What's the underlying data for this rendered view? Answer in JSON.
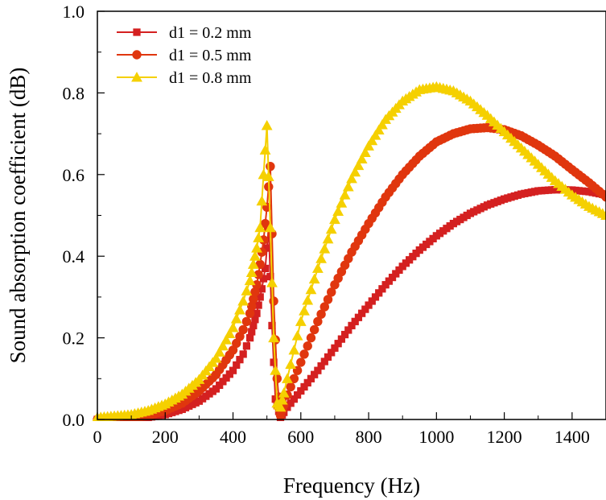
{
  "chart_data": {
    "type": "line",
    "title": "",
    "xlabel": "Frequency (Hz)",
    "ylabel": "Sound absorption coefficient (dB)",
    "xlim": [
      0,
      1500
    ],
    "ylim": [
      0.0,
      1.0
    ],
    "x_ticks": [
      "0",
      "200",
      "400",
      "600",
      "800",
      "1000",
      "1200",
      "1400"
    ],
    "y_ticks": [
      "0.0",
      "0.2",
      "0.4",
      "0.6",
      "0.8",
      "1.0"
    ],
    "legend_position": "top-left",
    "grid": false,
    "series": [
      {
        "name": "d1 = 0.2 mm",
        "color": "#d42020",
        "marker": "square",
        "points": [
          [
            0,
            0.0
          ],
          [
            100,
            0.0
          ],
          [
            150,
            0.005
          ],
          [
            200,
            0.012
          ],
          [
            250,
            0.025
          ],
          [
            300,
            0.045
          ],
          [
            350,
            0.075
          ],
          [
            400,
            0.12
          ],
          [
            430,
            0.16
          ],
          [
            450,
            0.2
          ],
          [
            470,
            0.26
          ],
          [
            485,
            0.32
          ],
          [
            495,
            0.37
          ],
          [
            505,
            0.47
          ],
          [
            515,
            0.23
          ],
          [
            525,
            0.05
          ],
          [
            540,
            0.005
          ],
          [
            560,
            0.03
          ],
          [
            600,
            0.07
          ],
          [
            650,
            0.12
          ],
          [
            700,
            0.175
          ],
          [
            750,
            0.23
          ],
          [
            800,
            0.28
          ],
          [
            850,
            0.33
          ],
          [
            900,
            0.375
          ],
          [
            950,
            0.415
          ],
          [
            1000,
            0.45
          ],
          [
            1050,
            0.48
          ],
          [
            1100,
            0.505
          ],
          [
            1150,
            0.525
          ],
          [
            1200,
            0.54
          ],
          [
            1250,
            0.552
          ],
          [
            1300,
            0.56
          ],
          [
            1350,
            0.563
          ],
          [
            1400,
            0.562
          ],
          [
            1450,
            0.558
          ],
          [
            1500,
            0.55
          ]
        ]
      },
      {
        "name": "d1 = 0.5 mm",
        "color": "#e0360e",
        "marker": "circle",
        "points": [
          [
            0,
            0.0
          ],
          [
            100,
            0.003
          ],
          [
            150,
            0.01
          ],
          [
            200,
            0.022
          ],
          [
            250,
            0.04
          ],
          [
            300,
            0.07
          ],
          [
            350,
            0.11
          ],
          [
            400,
            0.17
          ],
          [
            430,
            0.22
          ],
          [
            450,
            0.26
          ],
          [
            470,
            0.33
          ],
          [
            480,
            0.38
          ],
          [
            490,
            0.44
          ],
          [
            500,
            0.52
          ],
          [
            510,
            0.62
          ],
          [
            520,
            0.29
          ],
          [
            530,
            0.1
          ],
          [
            540,
            0.01
          ],
          [
            560,
            0.06
          ],
          [
            600,
            0.14
          ],
          [
            650,
            0.24
          ],
          [
            700,
            0.33
          ],
          [
            750,
            0.41
          ],
          [
            800,
            0.48
          ],
          [
            850,
            0.545
          ],
          [
            900,
            0.6
          ],
          [
            950,
            0.645
          ],
          [
            1000,
            0.68
          ],
          [
            1050,
            0.7
          ],
          [
            1100,
            0.712
          ],
          [
            1150,
            0.715
          ],
          [
            1200,
            0.71
          ],
          [
            1250,
            0.695
          ],
          [
            1300,
            0.672
          ],
          [
            1350,
            0.645
          ],
          [
            1400,
            0.612
          ],
          [
            1450,
            0.58
          ],
          [
            1500,
            0.545
          ]
        ]
      },
      {
        "name": "d1 = 0.8 mm",
        "color": "#f5d000",
        "marker": "triangle",
        "points": [
          [
            0,
            0.005
          ],
          [
            100,
            0.012
          ],
          [
            150,
            0.022
          ],
          [
            200,
            0.038
          ],
          [
            250,
            0.062
          ],
          [
            300,
            0.098
          ],
          [
            350,
            0.15
          ],
          [
            400,
            0.225
          ],
          [
            430,
            0.29
          ],
          [
            450,
            0.34
          ],
          [
            470,
            0.42
          ],
          [
            480,
            0.47
          ],
          [
            490,
            0.6
          ],
          [
            500,
            0.72
          ],
          [
            510,
            0.47
          ],
          [
            520,
            0.2
          ],
          [
            530,
            0.04
          ],
          [
            540,
            0.03
          ],
          [
            560,
            0.1
          ],
          [
            600,
            0.24
          ],
          [
            650,
            0.37
          ],
          [
            700,
            0.49
          ],
          [
            750,
            0.59
          ],
          [
            800,
            0.67
          ],
          [
            850,
            0.735
          ],
          [
            900,
            0.78
          ],
          [
            950,
            0.808
          ],
          [
            1000,
            0.815
          ],
          [
            1050,
            0.805
          ],
          [
            1100,
            0.78
          ],
          [
            1150,
            0.745
          ],
          [
            1200,
            0.705
          ],
          [
            1250,
            0.665
          ],
          [
            1300,
            0.625
          ],
          [
            1350,
            0.585
          ],
          [
            1400,
            0.55
          ],
          [
            1450,
            0.522
          ],
          [
            1500,
            0.5
          ]
        ]
      }
    ]
  }
}
